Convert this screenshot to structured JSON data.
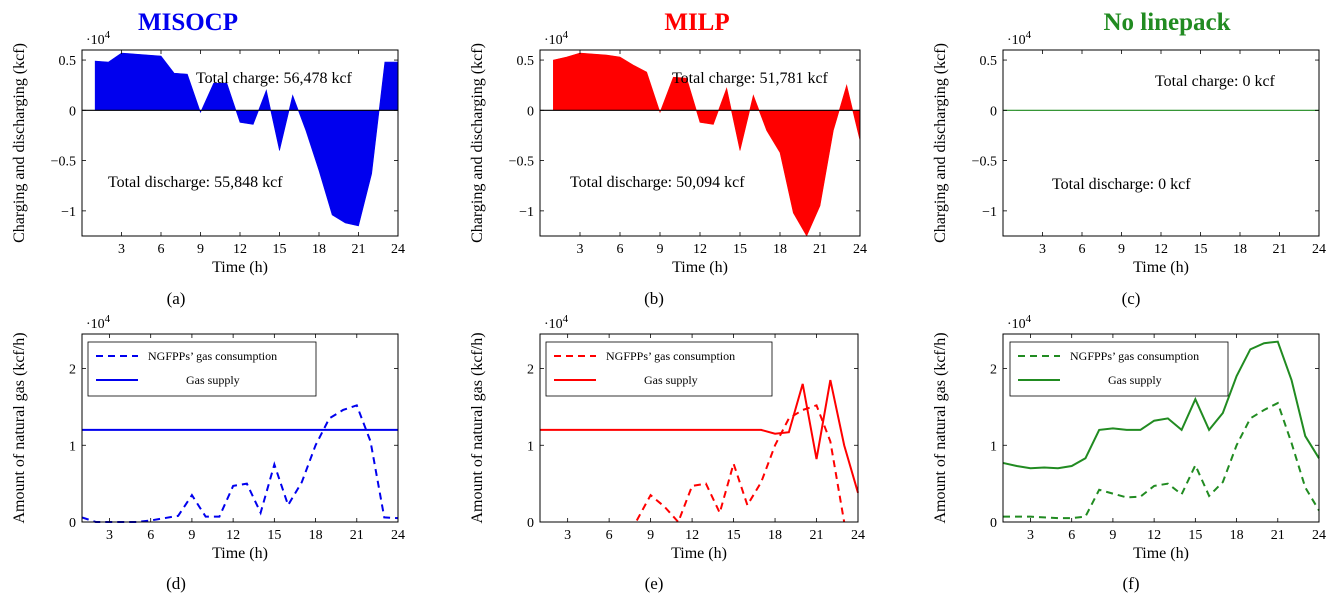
{
  "colors": {
    "misocp": "#0000ee",
    "milp": "#ff0000",
    "nolinepack": "#218b21"
  },
  "titles": [
    "MISOCP",
    "MILP",
    "No linepack"
  ],
  "sublabels": [
    "(a)",
    "(b)",
    "(c)",
    "(d)",
    "(e)",
    "(f)"
  ],
  "chart_data": [
    {
      "id": "a",
      "type": "area",
      "title": "MISOCP",
      "xlabel": "Time (h)",
      "ylabel": "Charging and discharging (kcf)",
      "exponent_label": "·10",
      "exponent": "4",
      "xlim": [
        0,
        24
      ],
      "ylim": [
        -1.25,
        0.6
      ],
      "xticks": [
        3,
        6,
        9,
        12,
        15,
        18,
        21,
        24
      ],
      "yticks": [
        0.5,
        0,
        -0.5,
        -1
      ],
      "ytick_labels": [
        "0.5",
        "0",
        "−0.5",
        "−1"
      ],
      "annotations": [
        "Total charge: 56,478 kcf",
        "Total discharge: 55,848 kcf"
      ],
      "series": [
        {
          "x": [
            1,
            2,
            3,
            4,
            5,
            6,
            7,
            8,
            9,
            10,
            11,
            12,
            13,
            14,
            15,
            16,
            17,
            18,
            19,
            20,
            21,
            22,
            23,
            24
          ],
          "values": [
            0.49,
            0.48,
            0.57,
            0.56,
            0.55,
            0.54,
            0.37,
            0.36,
            -0.02,
            0.27,
            0.27,
            -0.12,
            -0.14,
            0.2,
            -0.4,
            0.15,
            -0.2,
            -0.6,
            -1.04,
            -1.12,
            -1.15,
            -0.63,
            0.48,
            0.48
          ]
        }
      ]
    },
    {
      "id": "b",
      "type": "area",
      "title": "MILP",
      "xlabel": "Time (h)",
      "ylabel": "Charging and discharging (kcf)",
      "exponent_label": "·10",
      "exponent": "4",
      "xlim": [
        0,
        24
      ],
      "ylim": [
        -1.25,
        0.6
      ],
      "xticks": [
        3,
        6,
        9,
        12,
        15,
        18,
        21,
        24
      ],
      "yticks": [
        0.5,
        0,
        -0.5,
        -1
      ],
      "ytick_labels": [
        "0.5",
        "0",
        "−0.5",
        "−1"
      ],
      "annotations": [
        "Total charge: 51,781 kcf",
        "Total discharge: 50,094 kcf"
      ],
      "series": [
        {
          "x": [
            1,
            2,
            3,
            4,
            5,
            6,
            7,
            8,
            9,
            10,
            11,
            12,
            13,
            14,
            15,
            16,
            17,
            18,
            19,
            20,
            21,
            22,
            23,
            24
          ],
          "values": [
            0.5,
            0.53,
            0.57,
            0.56,
            0.55,
            0.53,
            0.45,
            0.38,
            -0.02,
            0.33,
            0.32,
            -0.12,
            -0.14,
            0.22,
            -0.4,
            0.15,
            -0.2,
            -0.42,
            -1.02,
            -1.25,
            -0.95,
            -0.2,
            0.25,
            -0.3
          ]
        }
      ]
    },
    {
      "id": "c",
      "type": "area",
      "title": "No linepack",
      "xlabel": "Time (h)",
      "ylabel": "Charging and discharging (kcf)",
      "exponent_label": "·10",
      "exponent": "4",
      "xlim": [
        0,
        24
      ],
      "ylim": [
        -1.25,
        0.6
      ],
      "xticks": [
        3,
        6,
        9,
        12,
        15,
        18,
        21,
        24
      ],
      "yticks": [
        0.5,
        0,
        -0.5,
        -1
      ],
      "ytick_labels": [
        "0.5",
        "0",
        "−0.5",
        "−1"
      ],
      "annotations": [
        "Total charge: 0 kcf",
        "Total discharge: 0 kcf"
      ],
      "series": [
        {
          "x": [
            1,
            2,
            3,
            4,
            5,
            6,
            7,
            8,
            9,
            10,
            11,
            12,
            13,
            14,
            15,
            16,
            17,
            18,
            19,
            20,
            21,
            22,
            23,
            24
          ],
          "values": [
            0,
            0,
            0,
            0,
            0,
            0,
            0,
            0,
            0,
            0,
            0,
            0,
            0,
            0,
            0,
            0,
            0,
            0,
            0,
            0,
            0,
            0,
            0,
            0
          ]
        }
      ]
    },
    {
      "id": "d",
      "type": "line",
      "xlabel": "Time (h)",
      "ylabel": "Amount of natural gas (kcf/h)",
      "exponent_label": "·10",
      "exponent": "4",
      "xlim": [
        1,
        24
      ],
      "ylim": [
        0,
        2.45
      ],
      "xticks": [
        3,
        6,
        9,
        12,
        15,
        18,
        21,
        24
      ],
      "yticks": [
        0,
        1,
        2
      ],
      "ytick_labels": [
        "0",
        "1",
        "2"
      ],
      "x": [
        1,
        2,
        3,
        4,
        5,
        6,
        7,
        8,
        9,
        10,
        11,
        12,
        13,
        14,
        15,
        16,
        17,
        18,
        19,
        20,
        21,
        22,
        23,
        24
      ],
      "series": [
        {
          "name": "NGFPPs’ gas consumption",
          "style": "dashed",
          "values": [
            0.06,
            0.0,
            0.0,
            0.0,
            0.0,
            0.02,
            0.05,
            0.08,
            0.35,
            0.07,
            0.07,
            0.47,
            0.5,
            0.12,
            0.75,
            0.22,
            0.52,
            1.0,
            1.35,
            1.46,
            1.52,
            1.05,
            0.06,
            0.05
          ]
        },
        {
          "name": "Gas supply",
          "style": "solid",
          "values": [
            1.2,
            1.2,
            1.2,
            1.2,
            1.2,
            1.2,
            1.2,
            1.2,
            1.2,
            1.2,
            1.2,
            1.2,
            1.2,
            1.2,
            1.2,
            1.2,
            1.2,
            1.2,
            1.2,
            1.2,
            1.2,
            1.2,
            1.2,
            1.2
          ]
        }
      ]
    },
    {
      "id": "e",
      "type": "line",
      "xlabel": "Time (h)",
      "ylabel": "Amount of natural gas (kcf/h)",
      "exponent_label": "·10",
      "exponent": "4",
      "xlim": [
        1,
        24
      ],
      "ylim": [
        0,
        2.45
      ],
      "xticks": [
        3,
        6,
        9,
        12,
        15,
        18,
        21,
        24
      ],
      "yticks": [
        0,
        1,
        2
      ],
      "ytick_labels": [
        "0",
        "1",
        "2"
      ],
      "x": [
        1,
        2,
        3,
        4,
        5,
        6,
        7,
        8,
        9,
        10,
        11,
        12,
        13,
        14,
        15,
        16,
        17,
        18,
        19,
        20,
        21,
        22,
        23,
        24
      ],
      "series": [
        {
          "name": "NGFPPs’ gas consumption",
          "style": "dashed",
          "values": [
            null,
            null,
            null,
            null,
            null,
            null,
            null,
            0.02,
            0.35,
            0.2,
            0.0,
            0.47,
            0.5,
            0.12,
            0.76,
            0.22,
            0.52,
            1.0,
            1.35,
            1.46,
            1.52,
            1.05,
            0.0,
            null
          ]
        },
        {
          "name": "Gas supply",
          "style": "solid",
          "values": [
            1.2,
            1.2,
            1.2,
            1.2,
            1.2,
            1.2,
            1.2,
            1.2,
            1.2,
            1.2,
            1.2,
            1.2,
            1.2,
            1.2,
            1.2,
            1.2,
            1.2,
            1.15,
            1.17,
            1.8,
            0.82,
            1.85,
            1.0,
            0.38
          ]
        }
      ]
    },
    {
      "id": "f",
      "type": "line",
      "xlabel": "Time (h)",
      "ylabel": "Amount of natural gas (kcf/h)",
      "exponent_label": "·10",
      "exponent": "4",
      "xlim": [
        1,
        24
      ],
      "ylim": [
        0,
        2.45
      ],
      "xticks": [
        3,
        6,
        9,
        12,
        15,
        18,
        21,
        24
      ],
      "yticks": [
        0,
        1,
        2
      ],
      "ytick_labels": [
        "0",
        "1",
        "2"
      ],
      "x": [
        1,
        2,
        3,
        4,
        5,
        6,
        7,
        8,
        9,
        10,
        11,
        12,
        13,
        14,
        15,
        16,
        17,
        18,
        19,
        20,
        21,
        22,
        23,
        24
      ],
      "series": [
        {
          "name": "NGFPPs’ gas consumption",
          "style": "dashed",
          "values": [
            0.07,
            0.07,
            0.07,
            0.06,
            0.05,
            0.05,
            0.07,
            0.42,
            0.37,
            0.32,
            0.33,
            0.47,
            0.5,
            0.36,
            0.74,
            0.34,
            0.52,
            1.0,
            1.35,
            1.46,
            1.55,
            1.03,
            0.45,
            0.15
          ]
        },
        {
          "name": "Gas supply",
          "style": "solid",
          "values": [
            0.77,
            0.73,
            0.7,
            0.71,
            0.7,
            0.73,
            0.83,
            1.2,
            1.22,
            1.2,
            1.2,
            1.32,
            1.35,
            1.2,
            1.6,
            1.2,
            1.42,
            1.9,
            2.25,
            2.33,
            2.35,
            1.85,
            1.12,
            0.83
          ]
        }
      ]
    }
  ]
}
